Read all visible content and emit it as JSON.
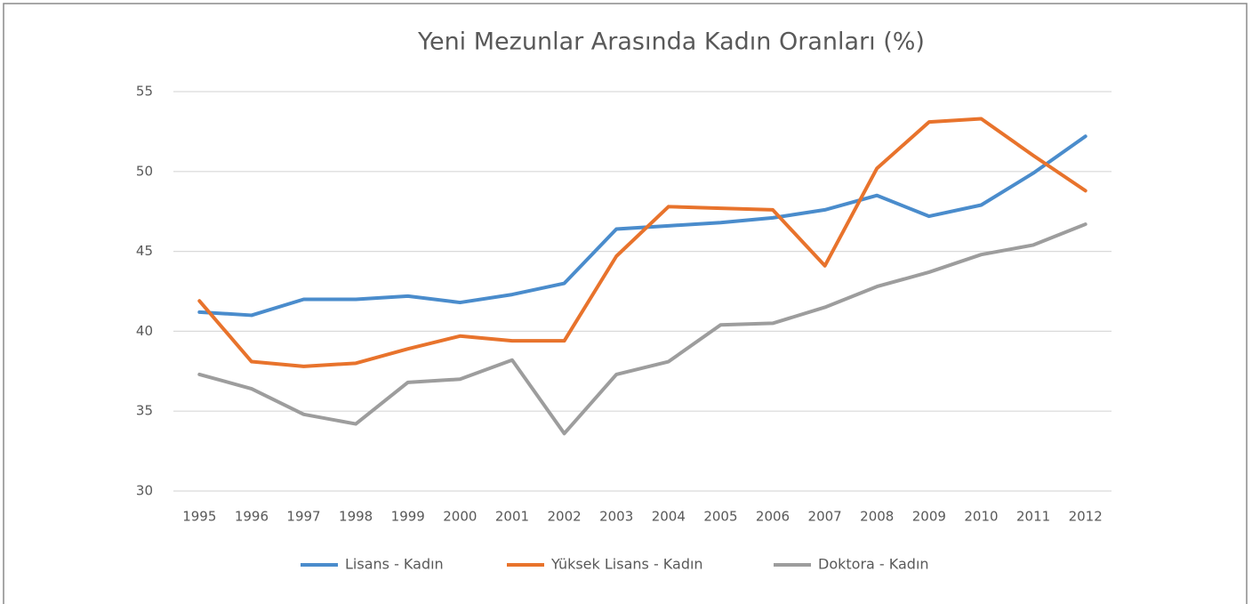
{
  "chart_data": {
    "type": "line",
    "title": "Yeni Mezunlar Arasında Kadın Oranları (%)",
    "categories": [
      "1995",
      "1996",
      "1997",
      "1998",
      "1999",
      "2000",
      "2001",
      "2002",
      "2003",
      "2004",
      "2005",
      "2006",
      "2007",
      "2008",
      "2009",
      "2010",
      "2011",
      "2012"
    ],
    "series": [
      {
        "name": "Lisans - Kadın",
        "color": "#4a8ccc",
        "values": [
          41.2,
          41.0,
          42.0,
          42.0,
          42.2,
          41.8,
          42.3,
          43.0,
          46.4,
          46.6,
          46.8,
          47.1,
          47.6,
          48.5,
          47.2,
          47.9,
          49.9,
          52.2
        ]
      },
      {
        "name": "Yüksek Lisans - Kadın",
        "color": "#e8732c",
        "values": [
          41.9,
          38.1,
          37.8,
          38.0,
          38.9,
          39.7,
          39.4,
          39.4,
          44.7,
          47.8,
          47.7,
          47.6,
          44.1,
          50.2,
          53.1,
          53.3,
          51.0,
          48.8
        ]
      },
      {
        "name": "Doktora - Kadın",
        "color": "#9d9d9d",
        "values": [
          37.3,
          36.4,
          34.8,
          34.2,
          36.8,
          37.0,
          38.2,
          33.6,
          37.3,
          38.1,
          40.4,
          40.5,
          41.5,
          42.8,
          43.7,
          44.8,
          45.4,
          46.7
        ]
      }
    ],
    "ylim": [
      30,
      55
    ],
    "yticks": [
      30,
      35,
      40,
      45,
      50,
      55
    ],
    "grid": true,
    "legend": "bottom"
  }
}
